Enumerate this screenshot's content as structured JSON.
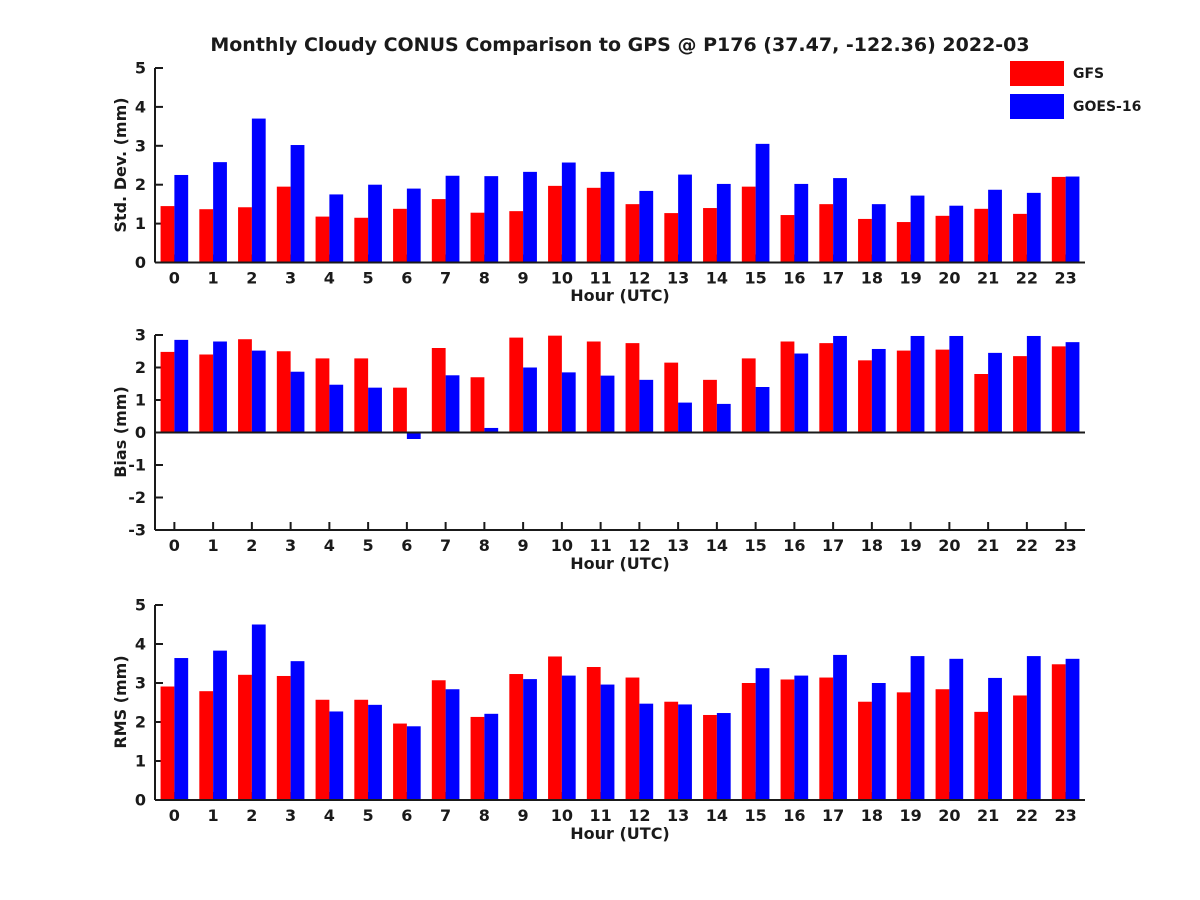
{
  "title": "Monthly Cloudy CONUS Comparison to GPS @ P176 (37.47, -122.36) 2022-03",
  "legend": {
    "items": [
      {
        "label": "GFS",
        "color": "#ff0000"
      },
      {
        "label": "GOES-16",
        "color": "#0000ff"
      }
    ]
  },
  "chart_data": [
    {
      "type": "bar",
      "panel": "std-dev",
      "ylabel": "Std. Dev. (mm)",
      "xlabel": "Hour (UTC)",
      "ylim": [
        0,
        5
      ],
      "yticks": [
        0,
        1,
        2,
        3,
        4,
        5
      ],
      "grid": false,
      "legend_position": "top-right",
      "categories": [
        "0",
        "1",
        "2",
        "3",
        "4",
        "5",
        "6",
        "7",
        "8",
        "9",
        "10",
        "11",
        "12",
        "13",
        "14",
        "15",
        "16",
        "17",
        "18",
        "19",
        "20",
        "21",
        "22",
        "23"
      ],
      "series": [
        {
          "name": "GFS",
          "color": "#ff0000",
          "values": [
            1.45,
            1.37,
            1.42,
            1.95,
            1.18,
            1.15,
            1.38,
            1.63,
            1.28,
            1.32,
            1.97,
            1.92,
            1.5,
            1.27,
            1.4,
            1.95,
            1.22,
            1.5,
            1.12,
            1.04,
            1.2,
            1.38,
            1.25,
            2.2
          ]
        },
        {
          "name": "GOES-16",
          "color": "#0000ff",
          "values": [
            2.25,
            2.58,
            3.7,
            3.02,
            1.75,
            2.0,
            1.9,
            2.23,
            2.22,
            2.33,
            2.57,
            2.33,
            1.84,
            2.26,
            2.02,
            3.05,
            2.02,
            2.17,
            1.5,
            1.72,
            1.46,
            1.87,
            1.79,
            2.21
          ]
        }
      ]
    },
    {
      "type": "bar",
      "panel": "bias",
      "ylabel": "Bias (mm)",
      "xlabel": "Hour (UTC)",
      "ylim": [
        -3,
        3
      ],
      "yticks": [
        -3,
        -2,
        -1,
        0,
        1,
        2,
        3
      ],
      "grid": false,
      "categories": [
        "0",
        "1",
        "2",
        "3",
        "4",
        "5",
        "6",
        "7",
        "8",
        "9",
        "10",
        "11",
        "12",
        "13",
        "14",
        "15",
        "16",
        "17",
        "18",
        "19",
        "20",
        "21",
        "22",
        "23"
      ],
      "series": [
        {
          "name": "GFS",
          "color": "#ff0000",
          "values": [
            2.48,
            2.4,
            2.87,
            2.5,
            2.28,
            2.28,
            1.38,
            2.6,
            1.7,
            2.92,
            2.98,
            2.8,
            2.75,
            2.15,
            1.62,
            2.28,
            2.8,
            2.75,
            2.22,
            2.52,
            2.55,
            1.8,
            2.35,
            2.65
          ]
        },
        {
          "name": "GOES-16",
          "color": "#0000ff",
          "values": [
            2.85,
            2.8,
            2.52,
            1.87,
            1.47,
            1.38,
            -0.2,
            1.76,
            0.14,
            2.0,
            1.85,
            1.75,
            1.62,
            0.92,
            0.88,
            1.4,
            2.43,
            2.97,
            2.57,
            2.97,
            2.97,
            2.45,
            2.97,
            2.78
          ]
        }
      ]
    },
    {
      "type": "bar",
      "panel": "rms",
      "ylabel": "RMS (mm)",
      "xlabel": "Hour (UTC)",
      "ylim": [
        0,
        5
      ],
      "yticks": [
        0,
        1,
        2,
        3,
        4,
        5
      ],
      "grid": false,
      "categories": [
        "0",
        "1",
        "2",
        "3",
        "4",
        "5",
        "6",
        "7",
        "8",
        "9",
        "10",
        "11",
        "12",
        "13",
        "14",
        "15",
        "16",
        "17",
        "18",
        "19",
        "20",
        "21",
        "22",
        "23"
      ],
      "series": [
        {
          "name": "GFS",
          "color": "#ff0000",
          "values": [
            2.91,
            2.79,
            3.21,
            3.18,
            2.57,
            2.57,
            1.96,
            3.07,
            2.13,
            3.23,
            3.68,
            3.41,
            3.14,
            2.52,
            2.18,
            3.0,
            3.09,
            3.14,
            2.52,
            2.76,
            2.84,
            2.26,
            2.68,
            3.48
          ]
        },
        {
          "name": "GOES-16",
          "color": "#0000ff",
          "values": [
            3.64,
            3.83,
            4.5,
            3.56,
            2.27,
            2.44,
            1.89,
            2.84,
            2.21,
            3.1,
            3.19,
            2.96,
            2.47,
            2.45,
            2.23,
            3.38,
            3.19,
            3.72,
            3.0,
            3.69,
            3.62,
            3.13,
            3.69,
            3.62
          ]
        }
      ]
    }
  ]
}
